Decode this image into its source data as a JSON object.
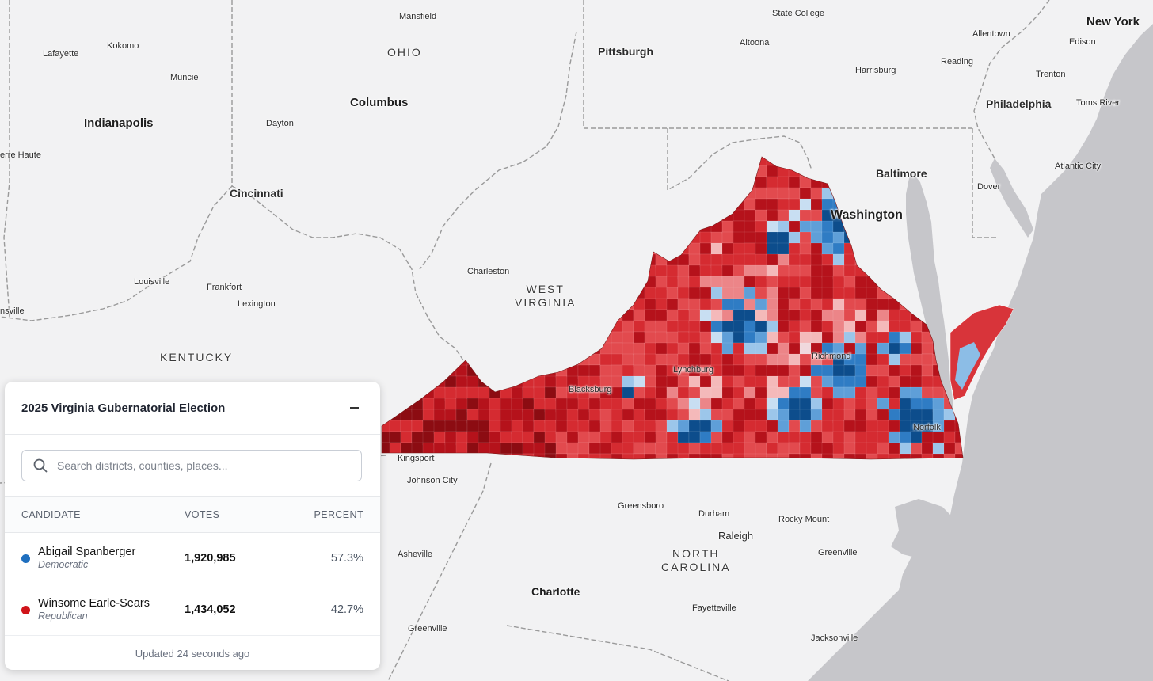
{
  "map": {
    "ocean_color": "#c6c6ca",
    "land_color": "#f2f2f3",
    "border_color": "#9a9a9a",
    "rep_colors": [
      "#8c0c12",
      "#b5121b",
      "#d52b31",
      "#e24a4e",
      "#ec8588",
      "#f4b9ba"
    ],
    "dem_colors": [
      "#f0d8dd",
      "#c8def2",
      "#9cc6ea",
      "#5f9fd8",
      "#2f7cc4",
      "#0d4d8c"
    ],
    "labels": {
      "mansfield": "Mansfield",
      "state_college": "State College",
      "new_york": "New York",
      "lafayette": "Lafayette",
      "kokomo": "Kokomo",
      "ohio": "OHIO",
      "altoona": "Altoona",
      "allentown": "Allentown",
      "edison": "Edison",
      "pittsburgh": "Pittsburgh",
      "reading": "Reading",
      "harrisburg": "Harrisburg",
      "trenton": "Trenton",
      "muncie": "Muncie",
      "columbus": "Columbus",
      "philadelphia": "Philadelphia",
      "toms_river": "Toms River",
      "indianapolis": "Indianapolis",
      "dayton": "Dayton",
      "terre_haute": "erre Haute",
      "atlantic_city": "Atlantic City",
      "baltimore": "Baltimore",
      "dover": "Dover",
      "cincinnati": "Cincinnati",
      "washington": "Washington",
      "charleston": "Charleston",
      "louisville": "Louisville",
      "frankfort": "Frankfort",
      "west_virginia": "WEST\nVIRGINIA",
      "lexington": "Lexington",
      "evansville": "nsville",
      "kentucky": "KENTUCKY",
      "richmond": "Richmond",
      "lynchburg": "Lynchburg",
      "blacksburg": "Blacksburg",
      "norfolk": "Norfolk",
      "kingsport": "Kingsport",
      "johnson_city": "Johnson City",
      "greensboro": "Greensboro",
      "durham": "Durham",
      "rocky_mount": "Rocky Mount",
      "raleigh": "Raleigh",
      "asheville": "Asheville",
      "north_carolina": "NORTH\nCAROLINA",
      "greenville_nc": "Greenville",
      "charlotte": "Charlotte",
      "fayetteville": "Fayetteville",
      "greenville_sc": "Greenville",
      "jacksonville": "Jacksonville"
    }
  },
  "panel": {
    "title": "2025 Virginia Gubernatorial Election",
    "search_placeholder": "Search districts, counties, places...",
    "columns": {
      "candidate": "CANDIDATE",
      "votes": "VOTES",
      "percent": "PERCENT"
    },
    "candidates": [
      {
        "name": "Abigail Spanberger",
        "party": "Democratic",
        "votes": "1,920,985",
        "percent": "57.3%",
        "color": "#1f6fbf"
      },
      {
        "name": "Winsome Earle-Sears",
        "party": "Republican",
        "votes": "1,434,052",
        "percent": "42.7%",
        "color": "#d0141a"
      }
    ],
    "updated": "Updated 24 seconds ago"
  }
}
